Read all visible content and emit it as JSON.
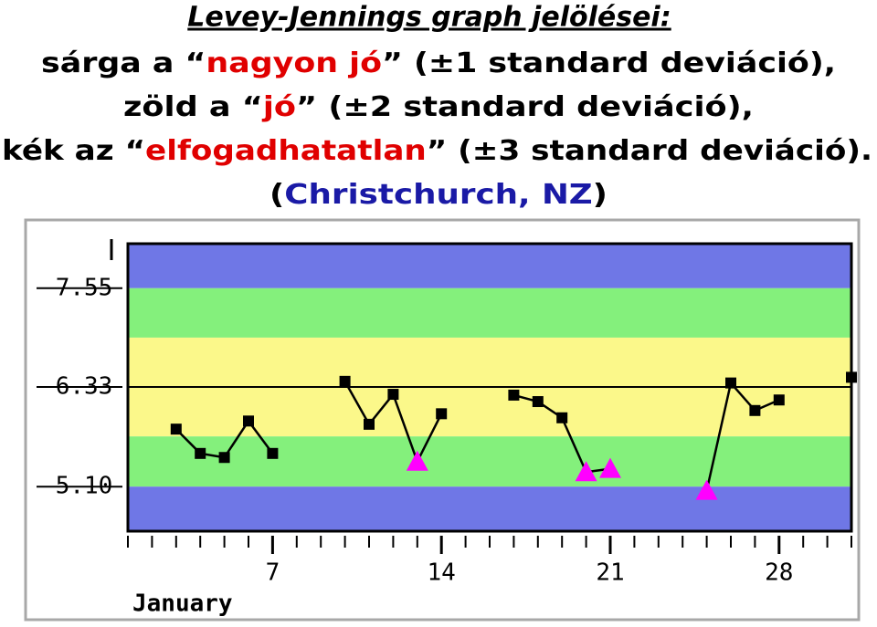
{
  "header": {
    "title": "Levey-Jennings graph jelölései:",
    "lines": [
      [
        {
          "text": "sárga a “",
          "color": "#000000"
        },
        {
          "text": "nagyon jó",
          "color": "#e00000"
        },
        {
          "text": "” (±1 standard deviáció),",
          "color": "#000000"
        }
      ],
      [
        {
          "text": "zöld a “",
          "color": "#000000"
        },
        {
          "text": "jó",
          "color": "#e00000"
        },
        {
          "text": "” (±2 standard deviáció),",
          "color": "#000000"
        }
      ],
      [
        {
          "text": "kék az “",
          "color": "#000000"
        },
        {
          "text": "elfogadhatatlan",
          "color": "#e00000"
        },
        {
          "text": "” (±3 standard deviáció).",
          "color": "#000000"
        }
      ],
      [
        {
          "text": "(",
          "color": "#000000"
        },
        {
          "text": "Christchurch, NZ",
          "color": "#1a1aa6"
        },
        {
          "text": ")",
          "color": "#000000"
        }
      ]
    ]
  },
  "chart_data": {
    "type": "levey-jennings",
    "xlabel": "January",
    "xlim": [
      1,
      31
    ],
    "xticks": [
      7,
      14,
      21,
      28
    ],
    "minor_xticks": [
      1,
      2,
      3,
      4,
      5,
      6,
      7,
      8,
      9,
      10,
      11,
      12,
      13,
      14,
      15,
      16,
      17,
      18,
      19,
      20,
      21,
      22,
      23,
      24,
      25,
      26,
      27,
      28,
      29,
      30,
      31
    ],
    "ylim": [
      4.55,
      8.1
    ],
    "yticks": [
      {
        "value": 7.55,
        "label": "7.55"
      },
      {
        "value": 6.33,
        "label": "6.33"
      },
      {
        "value": 5.1,
        "label": "5.10"
      }
    ],
    "mean": 6.33,
    "bands": [
      {
        "from": 7.55,
        "to": 8.1,
        "color": "#6f77e6"
      },
      {
        "from": 6.94,
        "to": 7.55,
        "color": "#84f07c"
      },
      {
        "from": 5.72,
        "to": 6.94,
        "color": "#fbf88a"
      },
      {
        "from": 5.1,
        "to": 5.72,
        "color": "#84f07c"
      },
      {
        "from": 4.55,
        "to": 5.1,
        "color": "#6f77e6"
      }
    ],
    "series": [
      {
        "color": "#000000",
        "flag_color": "#ff00ff",
        "x": [
          3,
          4,
          5,
          6,
          7,
          8,
          10,
          11,
          12,
          13,
          14,
          15,
          17,
          18,
          19,
          20,
          21,
          22,
          25,
          26,
          27,
          28,
          29,
          31
        ],
        "values": [
          5.81,
          5.51,
          5.46,
          5.91,
          5.51,
          null,
          6.4,
          5.87,
          6.24,
          5.41,
          6.0,
          null,
          6.23,
          6.15,
          5.95,
          5.28,
          5.32,
          null,
          5.05,
          6.38,
          6.04,
          6.17,
          null,
          6.45
        ],
        "shapes": [
          "square",
          "square",
          "square",
          "square",
          "square",
          null,
          "square",
          "square",
          "square",
          "triangle",
          "square",
          null,
          "square",
          "square",
          "square",
          "triangle",
          "triangle",
          null,
          "triangle",
          "square",
          "square",
          "square",
          null,
          "square"
        ]
      }
    ]
  }
}
